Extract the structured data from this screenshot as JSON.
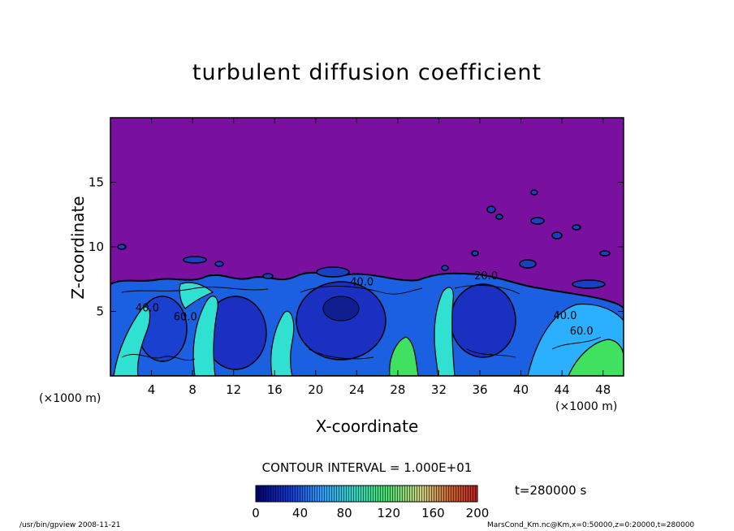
{
  "chart_data": {
    "type": "heatmap",
    "title": "turbulent diffusion coefficient",
    "xlabel": "X-coordinate",
    "ylabel": "Z-coordinate",
    "x_unit": "(×1000 m)",
    "xlim": [
      0,
      50
    ],
    "ylim": [
      0,
      20
    ],
    "x_ticks": [
      4,
      8,
      12,
      16,
      20,
      24,
      28,
      32,
      36,
      40,
      44,
      48
    ],
    "y_ticks": [
      5,
      10,
      15
    ],
    "contour_interval": "CONTOUR INTERVAL = 1.000E+01",
    "time": "t=280000 s",
    "contour_labels": [
      {
        "text": "40.0",
        "x": 3.6,
        "y": 5.0
      },
      {
        "text": "60.0",
        "x": 7.3,
        "y": 4.3
      },
      {
        "text": "40.0",
        "x": 24.5,
        "y": 7.0
      },
      {
        "text": "20.0",
        "x": 36.6,
        "y": 7.5
      },
      {
        "text": "40.0",
        "x": 44.3,
        "y": 4.4
      },
      {
        "text": "60.0",
        "x": 45.9,
        "y": 3.2
      }
    ],
    "colorbar": {
      "min": 0,
      "max": 200,
      "ticks": [
        0,
        40,
        80,
        120,
        160,
        200
      ],
      "colors": [
        "#000070",
        "#1035d0",
        "#2aa0ff",
        "#2ad8c0",
        "#40e070",
        "#d0d080",
        "#c8602a",
        "#c02020"
      ]
    },
    "colors": {
      "background_field": "#7a10a0",
      "low": "#1a30c0",
      "mid": "#2a88ff",
      "high": "#30e0d0",
      "peak": "#40e060"
    }
  },
  "footer": {
    "left": "/usr/bin/gpview   2008-11-21",
    "right": "MarsCond_Km.nc@Km,x=0:50000,z=0:20000,t=280000"
  }
}
